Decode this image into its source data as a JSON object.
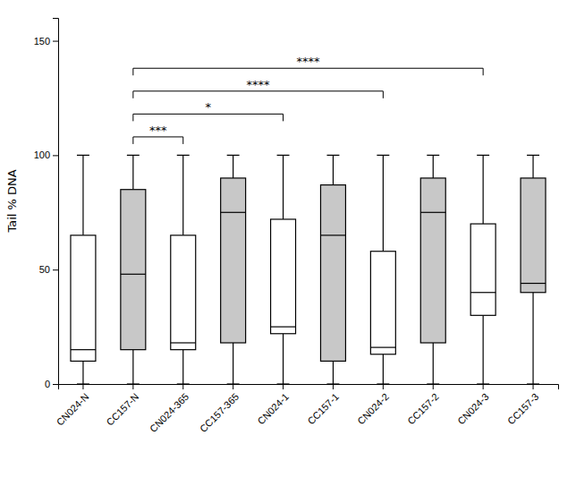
{
  "chart_data": {
    "type": "box",
    "categories": [
      "CN024-N",
      "CC157-N",
      "CN024-365",
      "CC157-365",
      "CN024-1",
      "CC157-1",
      "CN024-2",
      "CC157-2",
      "CN024-3",
      "CC157-3"
    ],
    "colors": [
      "white",
      "#c8c8c8",
      "white",
      "#c8c8c8",
      "white",
      "#c8c8c8",
      "white",
      "#c8c8c8",
      "white",
      "#c8c8c8"
    ],
    "boxes": [
      {
        "whislo": 0,
        "q1": 10,
        "med": 15,
        "q3": 65,
        "whishi": 100
      },
      {
        "whislo": 0,
        "q1": 15,
        "med": 48,
        "q3": 85,
        "whishi": 100
      },
      {
        "whislo": 0,
        "q1": 15,
        "med": 18,
        "q3": 65,
        "whishi": 100
      },
      {
        "whislo": 0,
        "q1": 18,
        "med": 75,
        "q3": 90,
        "whishi": 100
      },
      {
        "whislo": 0,
        "q1": 22,
        "med": 25,
        "q3": 72,
        "whishi": 100
      },
      {
        "whislo": 0,
        "q1": 10,
        "med": 65,
        "q3": 87,
        "whishi": 100
      },
      {
        "whislo": 0,
        "q1": 13,
        "med": 16,
        "q3": 58,
        "whishi": 100
      },
      {
        "whislo": 0,
        "q1": 18,
        "med": 75,
        "q3": 90,
        "whishi": 100
      },
      {
        "whislo": 0,
        "q1": 30,
        "med": 40,
        "q3": 70,
        "whishi": 100
      },
      {
        "whislo": 0,
        "q1": 40,
        "med": 44,
        "q3": 90,
        "whishi": 100
      }
    ],
    "ylabel": "Tail % DNA",
    "ylim": [
      0,
      160
    ],
    "yticks": [
      0,
      50,
      100,
      150
    ],
    "grid": false,
    "annotations": [
      {
        "from": "CC157-N",
        "to": "CN024-365",
        "y": 108,
        "label": "***"
      },
      {
        "from": "CC157-N",
        "to": "CN024-1",
        "y": 118,
        "label": "*"
      },
      {
        "from": "CC157-N",
        "to": "CN024-2",
        "y": 128,
        "label": "****"
      },
      {
        "from": "CC157-N",
        "to": "CN024-3",
        "y": 138,
        "label": "****"
      }
    ]
  }
}
